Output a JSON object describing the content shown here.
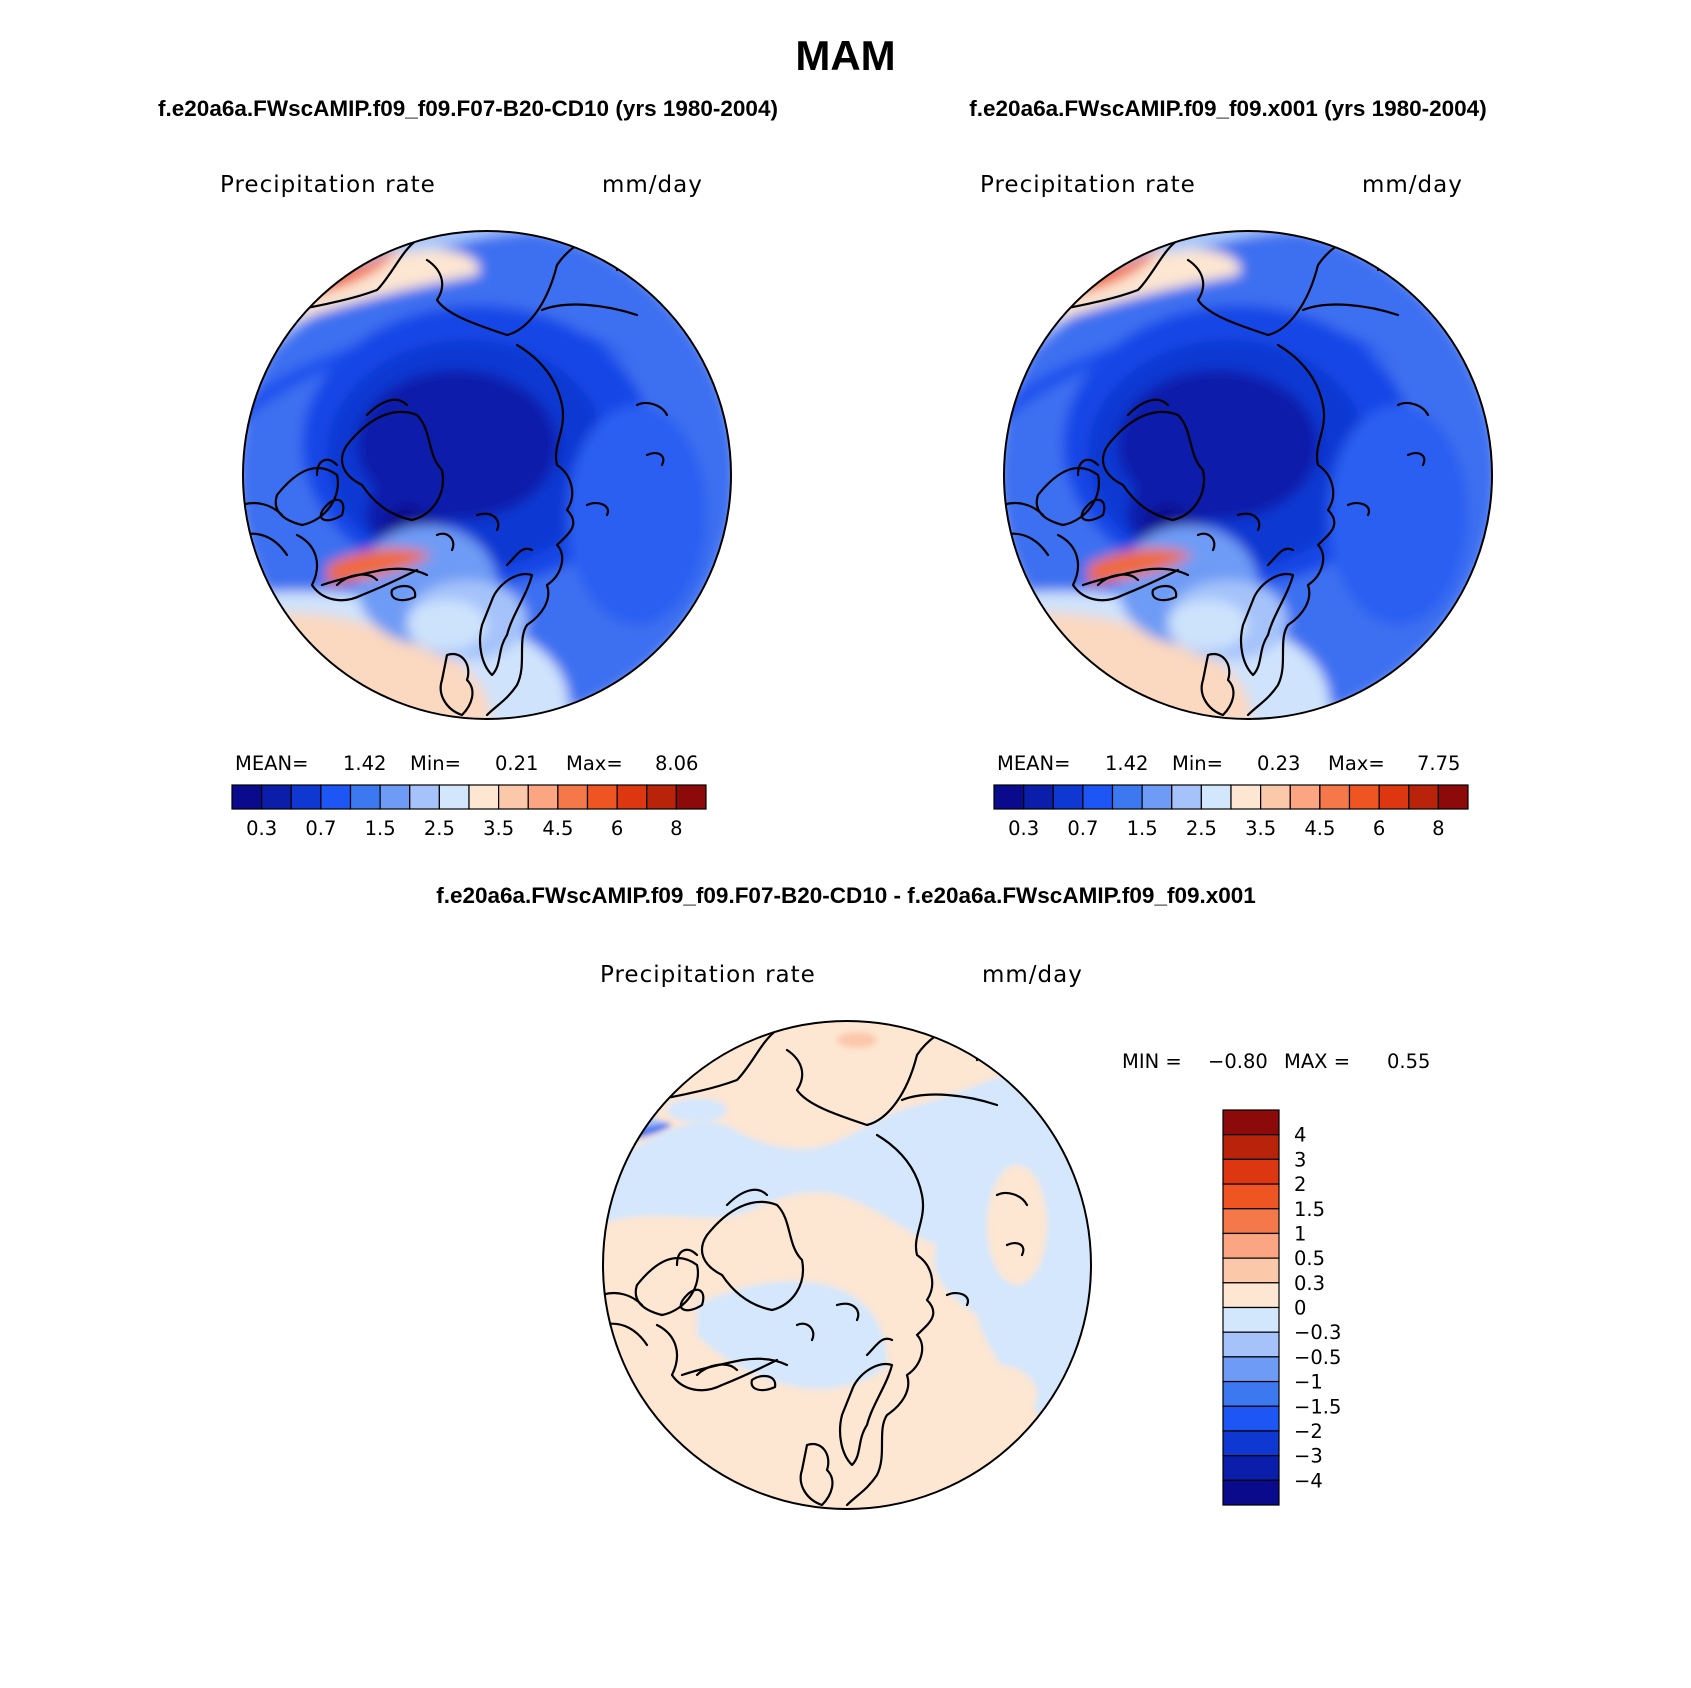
{
  "figure": {
    "season": "MAM",
    "variable": "Precipitation rate",
    "units": "mm/day"
  },
  "panels": {
    "left": {
      "case_title": "f.e20a6a.FWscAMIP.f09_f09.F07-B20-CD10 (yrs 1980-2004)",
      "stats": {
        "mean_label": "MEAN=",
        "mean": "1.42",
        "min_label": "Min=",
        "min": "0.21",
        "max_label": "Max=",
        "max": "8.06"
      }
    },
    "right": {
      "case_title": "f.e20a6a.FWscAMIP.f09_f09.x001 (yrs 1980-2004)",
      "stats": {
        "mean_label": "MEAN=",
        "mean": "1.42",
        "min_label": "Min=",
        "min": "0.23",
        "max_label": "Max=",
        "max": "7.75"
      }
    },
    "diff": {
      "case_title": "f.e20a6a.FWscAMIP.f09_f09.F07-B20-CD10 - f.e20a6a.FWscAMIP.f09_f09.x001",
      "stats": {
        "min_label": "MIN =",
        "min": "−0.80",
        "max_label": "MAX =",
        "max": "0.55"
      }
    }
  },
  "colorbars": {
    "abs": {
      "levels": [
        "0.2",
        "0.3",
        "0.5",
        "0.7",
        "1",
        "1.5",
        "2",
        "2.5",
        "3",
        "3.5",
        "4",
        "4.5",
        "5",
        "6",
        "7",
        "8"
      ],
      "tick_labels": [
        "0.3",
        "0.7",
        "1.5",
        "2.5",
        "3.5",
        "4.5",
        "6",
        "8"
      ],
      "tick_after_box": [
        1,
        3,
        5,
        7,
        9,
        11,
        13,
        15
      ],
      "colors": [
        "#0a0a8c",
        "#0a1eaa",
        "#0f37d2",
        "#1e55f5",
        "#3c78f0",
        "#6e9bf5",
        "#a5c3fa",
        "#d2e6fc",
        "#fde6d2",
        "#fcc8aa",
        "#fca582",
        "#f5784b",
        "#ef5523",
        "#dc3710",
        "#b9230a",
        "#8c0a0a"
      ]
    },
    "diff": {
      "levels": [
        "4",
        "3",
        "2",
        "1.5",
        "1",
        "0.5",
        "0.3",
        "0",
        "−0.3",
        "−0.5",
        "−1",
        "−1.5",
        "−2",
        "−3",
        "−4"
      ],
      "colors": [
        "#8c0a0a",
        "#b9230a",
        "#dc3710",
        "#ef5523",
        "#f5784b",
        "#fca582",
        "#fcc8aa",
        "#fde6d2",
        "#d2e6fc",
        "#a5c3fa",
        "#6e9bf5",
        "#3c78f0",
        "#1e55f5",
        "#0f37d2",
        "#0a1eaa",
        "#0a0a8c"
      ]
    }
  }
}
